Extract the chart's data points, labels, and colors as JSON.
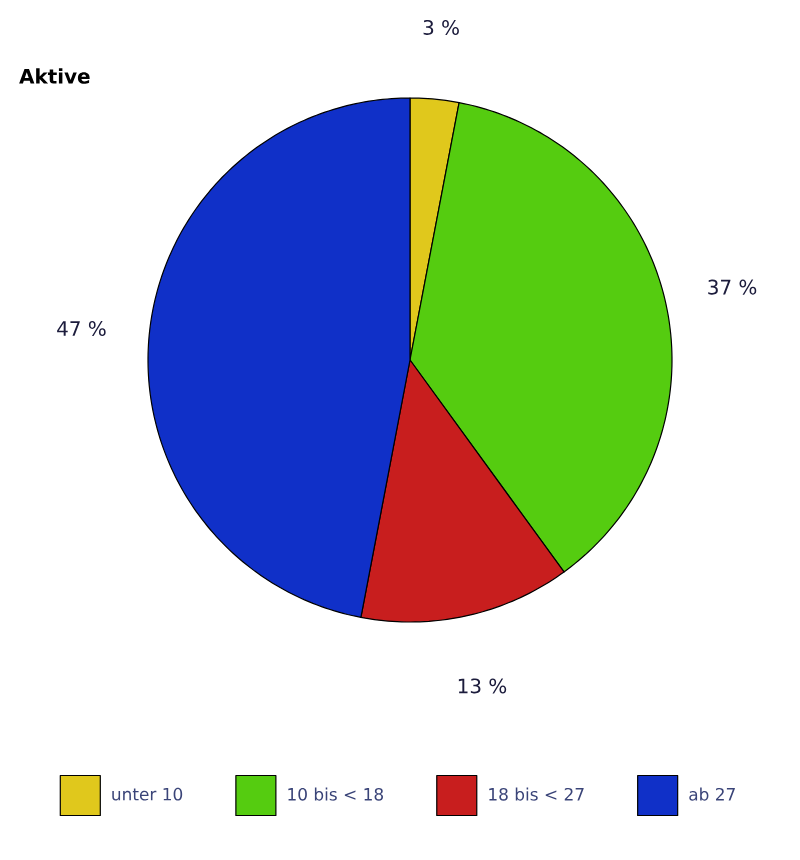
{
  "chart_data": {
    "type": "pie",
    "title": "Aktive",
    "categories": [
      "unter 10",
      "10 bis < 18",
      "18 bis < 27",
      "ab 27"
    ],
    "values": [
      3,
      37,
      13,
      47
    ],
    "colors": [
      "#e0c81c",
      "#55cc10",
      "#c81e1e",
      "#1030c8"
    ],
    "value_labels": [
      "3 %",
      "37 %",
      "13 %",
      "47 %"
    ],
    "legend": "bottom"
  }
}
